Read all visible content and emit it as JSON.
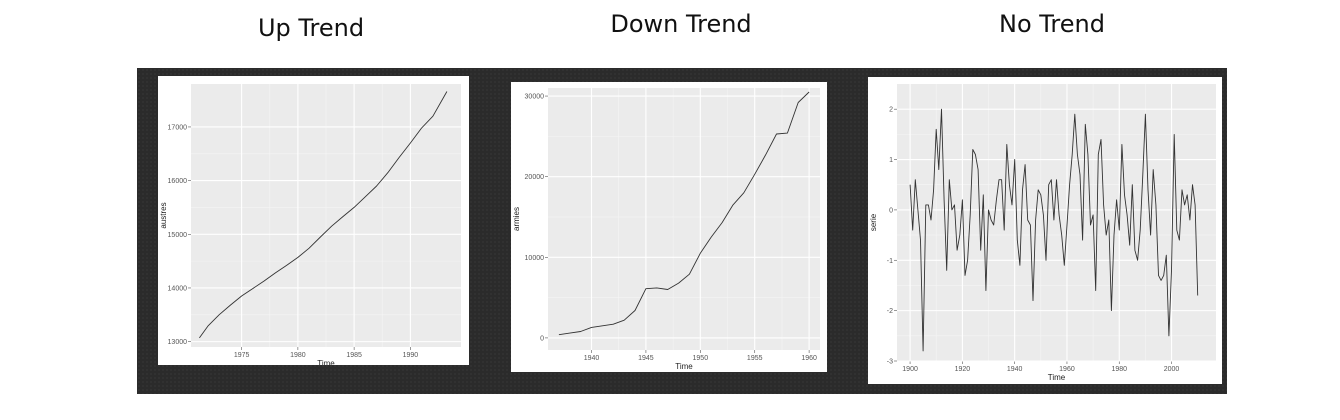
{
  "headings": [
    "Up Trend",
    "Down Trend",
    "No Trend"
  ],
  "chart_data": [
    {
      "type": "line",
      "title": "Up Trend",
      "xlabel": "Time",
      "ylabel": "austres",
      "xlim": [
        1970.5,
        1994.5
      ],
      "ylim": [
        12900,
        17800
      ],
      "xticks": [
        1975,
        1980,
        1985,
        1990
      ],
      "yticks": [
        13000,
        14000,
        15000,
        16000,
        17000
      ],
      "grid": true,
      "x": [
        1971.25,
        1972,
        1973,
        1974,
        1975,
        1976,
        1977,
        1978,
        1979,
        1980,
        1981,
        1982,
        1983,
        1984,
        1985,
        1986,
        1987,
        1988,
        1989,
        1990,
        1991,
        1992,
        1993.25
      ],
      "y": [
        13070,
        13290,
        13500,
        13680,
        13850,
        13990,
        14130,
        14280,
        14420,
        14570,
        14740,
        14950,
        15150,
        15330,
        15500,
        15700,
        15900,
        16150,
        16430,
        16700,
        16980,
        17200,
        17660
      ]
    },
    {
      "type": "line",
      "title": "Down Trend",
      "xlabel": "Time",
      "ylabel": "armies",
      "xlim": [
        1936,
        1961
      ],
      "ylim": [
        -1500,
        31000
      ],
      "xticks": [
        1940,
        1945,
        1950,
        1955,
        1960
      ],
      "yticks": [
        0,
        10000,
        20000,
        30000
      ],
      "grid": true,
      "x": [
        1937,
        1938,
        1939,
        1940,
        1941,
        1942,
        1943,
        1944,
        1945,
        1946,
        1947,
        1948,
        1949,
        1950,
        1951,
        1952,
        1953,
        1954,
        1955,
        1956,
        1957,
        1958,
        1959,
        1960
      ],
      "y": [
        400,
        600,
        800,
        1300,
        1500,
        1700,
        2200,
        3400,
        6100,
        6200,
        6000,
        6800,
        7900,
        10500,
        12500,
        14300,
        16500,
        18000,
        20300,
        22700,
        25300,
        25400,
        29200,
        30500
      ]
    },
    {
      "type": "line",
      "title": "No Trend",
      "xlabel": "Time",
      "ylabel": "serie",
      "xlim": [
        1895,
        2017
      ],
      "ylim": [
        -3,
        2.5
      ],
      "xticks": [
        1900,
        1920,
        1940,
        1960,
        1980,
        2000
      ],
      "yticks": [
        -3,
        -2,
        -1,
        0,
        1,
        2
      ],
      "grid": true,
      "x": [
        1900,
        1901,
        1902,
        1903,
        1904,
        1905,
        1906,
        1907,
        1908,
        1909,
        1910,
        1911,
        1912,
        1913,
        1914,
        1915,
        1916,
        1917,
        1918,
        1919,
        1920,
        1921,
        1922,
        1923,
        1924,
        1925,
        1926,
        1927,
        1928,
        1929,
        1930,
        1931,
        1932,
        1933,
        1934,
        1935,
        1936,
        1937,
        1938,
        1939,
        1940,
        1941,
        1942,
        1943,
        1944,
        1945,
        1946,
        1947,
        1948,
        1949,
        1950,
        1951,
        1952,
        1953,
        1954,
        1955,
        1956,
        1957,
        1958,
        1959,
        1960,
        1961,
        1962,
        1963,
        1964,
        1965,
        1966,
        1967,
        1968,
        1969,
        1970,
        1971,
        1972,
        1973,
        1974,
        1975,
        1976,
        1977,
        1978,
        1979,
        1980,
        1981,
        1982,
        1983,
        1984,
        1985,
        1986,
        1987,
        1988,
        1989,
        1990,
        1991,
        1992,
        1993,
        1994,
        1995,
        1996,
        1997,
        1998,
        1999,
        2000,
        2001,
        2002,
        2003,
        2004,
        2005,
        2006,
        2007,
        2008,
        2009,
        2010
      ],
      "y": [
        0.5,
        -0.4,
        0.6,
        0.0,
        -0.6,
        -2.8,
        0.1,
        0.1,
        -0.2,
        0.4,
        1.6,
        0.8,
        2.0,
        0.2,
        -1.2,
        0.6,
        0.0,
        0.1,
        -0.8,
        -0.5,
        0.2,
        -1.3,
        -1.0,
        -0.1,
        1.2,
        1.1,
        0.8,
        -0.8,
        0.3,
        -1.6,
        0.0,
        -0.2,
        -0.3,
        0.2,
        0.6,
        0.6,
        -0.4,
        1.3,
        0.5,
        0.1,
        1.0,
        -0.6,
        -1.1,
        0.4,
        0.9,
        -0.2,
        -0.3,
        -1.8,
        -0.2,
        0.4,
        0.3,
        -0.1,
        -1.0,
        0.5,
        0.6,
        -0.2,
        0.6,
        -0.1,
        -0.5,
        -1.1,
        -0.3,
        0.5,
        1.1,
        1.9,
        1.1,
        0.7,
        -0.6,
        1.7,
        1.1,
        -0.3,
        -0.1,
        -1.6,
        1.1,
        1.4,
        0.1,
        -0.5,
        -0.2,
        -2.0,
        -0.5,
        0.2,
        -0.4,
        1.3,
        0.3,
        -0.1,
        -0.7,
        0.5,
        -0.8,
        -1.0,
        -0.4,
        0.7,
        1.9,
        0.4,
        -0.5,
        0.8,
        0.1,
        -1.3,
        -1.4,
        -1.3,
        -0.9,
        -2.5,
        -1.2,
        1.5,
        -0.4,
        -0.6,
        0.4,
        0.1,
        0.3,
        -0.2,
        0.5,
        0.1,
        -1.7
      ]
    }
  ]
}
